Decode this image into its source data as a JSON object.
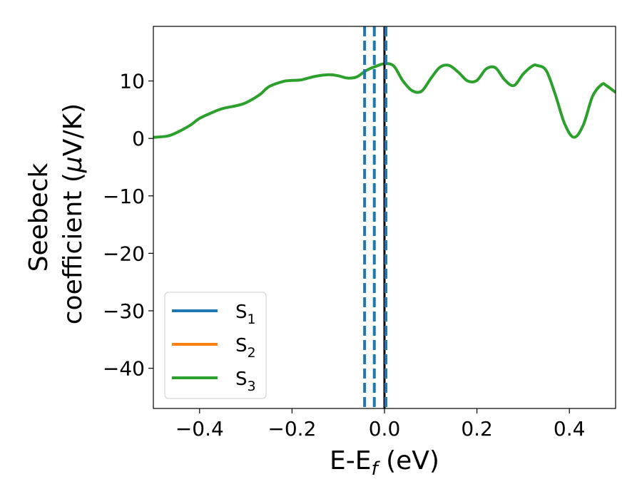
{
  "chart_data": {
    "type": "line",
    "title": "",
    "xlabel": "E-E_f (eV)",
    "xlabel_parts": {
      "main": "E-E",
      "sub": "f",
      "tail": " (eV)"
    },
    "ylabel_line1": "Seebeck",
    "ylabel_line2_pre": "coefficient  (",
    "ylabel_line2_mu": "μ",
    "ylabel_line2_post": "V/K)",
    "xlim": [
      -0.5,
      0.5
    ],
    "ylim": [
      -47,
      19.5
    ],
    "xticks": [
      -0.4,
      -0.2,
      0.0,
      0.2,
      0.4
    ],
    "xtick_labels": [
      "−0.4",
      "−0.2",
      "0.0",
      "0.2",
      "0.4"
    ],
    "yticks": [
      -40,
      -30,
      -20,
      -10,
      0,
      10
    ],
    "ytick_labels": [
      "−40",
      "−30",
      "−20",
      "−10",
      "0",
      "10"
    ],
    "grid": false,
    "legend_position": "lower-left",
    "series": [
      {
        "name": "S",
        "sub": "1",
        "color": "#1f77b4",
        "x": [],
        "y": []
      },
      {
        "name": "S",
        "sub": "2",
        "color": "#ff7f0e",
        "x": [],
        "y": []
      },
      {
        "name": "S",
        "sub": "3",
        "color": "#2ca02c",
        "x": [
          -0.5,
          -0.47,
          -0.45,
          -0.42,
          -0.4,
          -0.37,
          -0.35,
          -0.32,
          -0.3,
          -0.27,
          -0.25,
          -0.22,
          -0.2,
          -0.18,
          -0.15,
          -0.12,
          -0.1,
          -0.08,
          -0.06,
          -0.04,
          -0.02,
          0.0,
          0.02,
          0.04,
          0.06,
          0.08,
          0.1,
          0.12,
          0.14,
          0.16,
          0.18,
          0.2,
          0.22,
          0.24,
          0.26,
          0.28,
          0.3,
          0.32,
          0.33,
          0.35,
          0.37,
          0.39,
          0.41,
          0.43,
          0.45,
          0.47,
          0.48,
          0.5
        ],
        "y": [
          0.2,
          0.4,
          1.0,
          2.3,
          3.5,
          4.6,
          5.2,
          5.7,
          6.2,
          7.6,
          9.0,
          9.9,
          10.1,
          10.2,
          10.8,
          11.1,
          10.9,
          10.5,
          10.7,
          11.8,
          12.5,
          13.0,
          12.6,
          10.0,
          8.3,
          8.2,
          10.4,
          12.4,
          12.7,
          11.5,
          10.0,
          10.1,
          12.1,
          12.3,
          10.2,
          9.2,
          11.2,
          12.6,
          12.7,
          11.8,
          7.5,
          2.5,
          0.2,
          2.3,
          7.3,
          9.4,
          9.2,
          8.0
        ]
      }
    ],
    "vlines": [
      {
        "x": -0.043,
        "color": "#1f77b4",
        "style": "dashed"
      },
      {
        "x": -0.022,
        "color": "#1f77b4",
        "style": "dashed"
      },
      {
        "x": 0.0,
        "color": "#000000",
        "style": "solid"
      },
      {
        "x": 0.003,
        "color": "#1f77b4",
        "style": "dashed"
      }
    ]
  }
}
